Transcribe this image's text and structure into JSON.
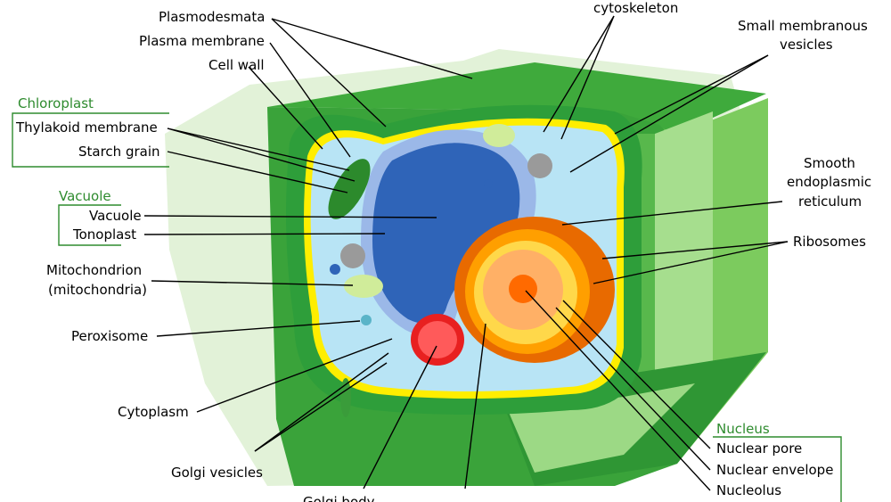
{
  "labels": {
    "plasmodesmata": "Plasmodesmata",
    "plasma_membrane": "Plasma membrane",
    "cell_wall": "Cell wall",
    "cytoskeleton": "cytoskeleton",
    "small_vesicles_1": "Small membranous",
    "small_vesicles_2": "vesicles",
    "chloroplast_header": "Chloroplast",
    "thylakoid": "Thylakoid membrane",
    "starch": "Starch grain",
    "vacuole_header": "Vacuole",
    "vacuole": "Vacuole",
    "tonoplast": "Tonoplast",
    "smooth_er_1": "Smooth",
    "smooth_er_2": "endoplasmic",
    "smooth_er_3": "reticulum",
    "ribosomes": "Ribosomes",
    "mito_1": "Mitochondrion",
    "mito_2": "(mitochondria)",
    "peroxisome": "Peroxisome",
    "cytoplasm": "Cytoplasm",
    "golgi_vesicles": "Golgi vesicles",
    "golgi_body": "Golgi body",
    "nucleus_header": "Nucleus",
    "nuclear_pore": "Nuclear pore",
    "nuclear_envelope": "Nuclear envelope",
    "nucleolus": "Nucleolus"
  },
  "colors": {
    "outer_glow": "#dcefd0",
    "wall_dark": "#2e9e3a",
    "wall_mid": "#4cb84a",
    "wall_light": "#8ed37a",
    "membrane_yellow": "#ffee00",
    "cytoplasm": "#b8e4f5",
    "vacuole": "#2f64b8",
    "nucleus_outer": "#ff9f00",
    "nucleus_inner": "#ffd84a",
    "nucleolus": "#ff6a00",
    "golgi": "#e82020",
    "chloroplast": "#2c8a2c",
    "green_text": "#2e8b2e"
  }
}
